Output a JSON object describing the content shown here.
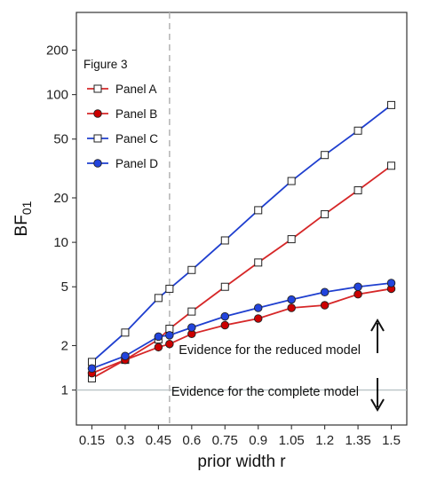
{
  "chart_data": {
    "type": "line",
    "scale_y": "log",
    "xlabel": "prior width r",
    "ylabel": "BF",
    "ylabel_subscript": "01",
    "x": [
      0.15,
      0.3,
      0.45,
      0.5,
      0.6,
      0.75,
      0.9,
      1.05,
      1.2,
      1.35,
      1.5
    ],
    "x_ticks": [
      0.15,
      0.3,
      0.45,
      0.6,
      0.75,
      0.9,
      1.05,
      1.2,
      1.35,
      1.5
    ],
    "x_tick_labels": [
      "0.15",
      "0.3",
      "0.45",
      "0.6",
      "0.75",
      "0.9",
      "1.05",
      "1.2",
      "1.35",
      "1.5"
    ],
    "xlim": [
      0.08,
      1.57
    ],
    "y_ticks": [
      1,
      2,
      5,
      10,
      20,
      50,
      100,
      200
    ],
    "y_tick_labels": [
      "1",
      "2",
      "5",
      "10",
      "20",
      "50",
      "100",
      "200"
    ],
    "ylim": [
      0.58,
      360
    ],
    "grid": false,
    "reference_hline": 1,
    "reference_vline": 0.5,
    "legend": {
      "title": "Figure 3",
      "placement": "top-left"
    },
    "series": [
      {
        "name": "Panel A",
        "line_color": "#d62728",
        "marker": "square",
        "marker_fill": "#ffffff",
        "values": [
          1.2,
          1.6,
          2.2,
          2.6,
          3.4,
          5.0,
          7.3,
          10.5,
          15.5,
          22.5,
          33.0
        ]
      },
      {
        "name": "Panel B",
        "line_color": "#d62728",
        "marker": "circle",
        "marker_fill": "#cc0000",
        "values": [
          1.3,
          1.6,
          1.95,
          2.05,
          2.4,
          2.75,
          3.05,
          3.6,
          3.75,
          4.45,
          4.85
        ]
      },
      {
        "name": "Panel C",
        "line_color": "#1f3fcf",
        "marker": "square",
        "marker_fill": "#ffffff",
        "values": [
          1.55,
          2.45,
          4.2,
          4.85,
          6.5,
          10.3,
          16.5,
          26.0,
          39.0,
          57.0,
          85.0
        ]
      },
      {
        "name": "Panel D",
        "line_color": "#1f3fcf",
        "marker": "circle",
        "marker_fill": "#2244dd",
        "values": [
          1.4,
          1.7,
          2.3,
          2.35,
          2.65,
          3.15,
          3.6,
          4.1,
          4.6,
          5.0,
          5.3
        ]
      }
    ],
    "annotations": [
      {
        "text": "Evidence for the reduced model",
        "arrow": "up"
      },
      {
        "text": "Evidence for the complete model",
        "arrow": "down"
      }
    ]
  }
}
